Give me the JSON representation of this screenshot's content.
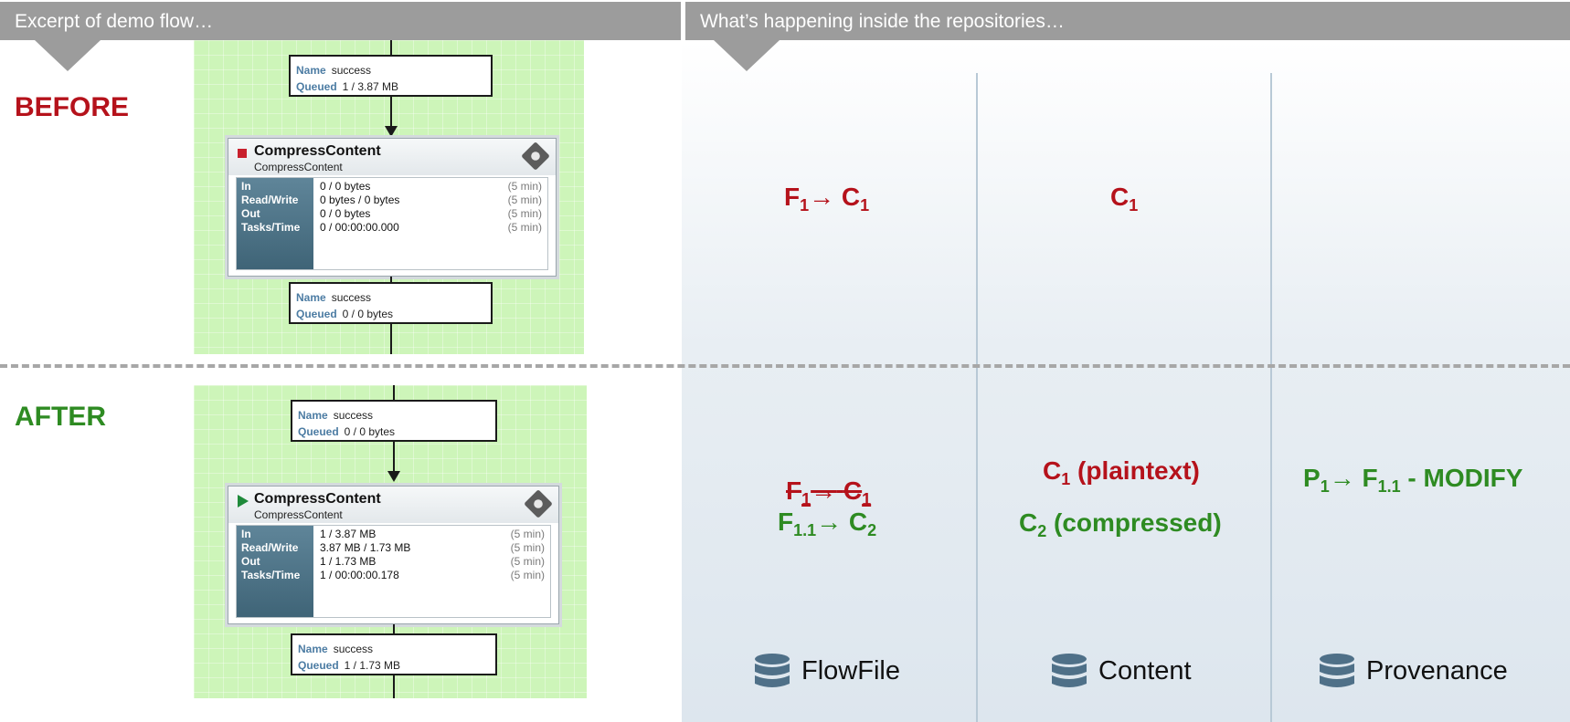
{
  "header": {
    "left_title": "Excerpt of demo flow…",
    "right_title": "What’s happening inside the repositories…"
  },
  "states": {
    "before": "BEFORE",
    "after": "AFTER"
  },
  "colors": {
    "before": "#b5121b",
    "after": "#2e8b22",
    "header_bg": "#9c9c9c"
  },
  "before_flow": {
    "conn_top": {
      "name_key": "Name",
      "name_val": "success",
      "queued_key": "Queued",
      "queued_val": "1 / 3.87 MB"
    },
    "processor": {
      "name": "CompressContent",
      "type": "CompressContent",
      "status_icon": "stop-icon",
      "stats": [
        {
          "key": "In",
          "value": "0 / 0 bytes",
          "time": "(5 min)"
        },
        {
          "key": "Read/Write",
          "value": "0 bytes / 0 bytes",
          "time": "(5 min)"
        },
        {
          "key": "Out",
          "value": "0 / 0 bytes",
          "time": "(5 min)"
        },
        {
          "key": "Tasks/Time",
          "value": "0 / 00:00:00.000",
          "time": "(5 min)"
        }
      ]
    },
    "conn_bottom": {
      "name_key": "Name",
      "name_val": "success",
      "queued_key": "Queued",
      "queued_val": "0 / 0 bytes"
    }
  },
  "after_flow": {
    "conn_top": {
      "name_key": "Name",
      "name_val": "success",
      "queued_key": "Queued",
      "queued_val": "0 / 0 bytes"
    },
    "processor": {
      "name": "CompressContent",
      "type": "CompressContent",
      "status_icon": "play-icon",
      "stats": [
        {
          "key": "In",
          "value": "1 / 3.87 MB",
          "time": "(5 min)"
        },
        {
          "key": "Read/Write",
          "value": "3.87 MB / 1.73 MB",
          "time": "(5 min)"
        },
        {
          "key": "Out",
          "value": "1 / 1.73 MB",
          "time": "(5 min)"
        },
        {
          "key": "Tasks/Time",
          "value": "1 / 00:00:00.178",
          "time": "(5 min)"
        }
      ]
    },
    "conn_bottom": {
      "name_key": "Name",
      "name_val": "success",
      "queued_key": "Queued",
      "queued_val": "1 / 1.73 MB"
    }
  },
  "repos": {
    "before": {
      "flowfile": {
        "a": "F",
        "a_sub": "1",
        "arrow": "→",
        "b": "C",
        "b_sub": "1"
      },
      "content": {
        "a": "C",
        "a_sub": "1"
      }
    },
    "after": {
      "flowfile_old": {
        "a": "F",
        "a_sub": "1",
        "arrow": "→",
        "b": "C",
        "b_sub": "1"
      },
      "flowfile_new": {
        "a": "F",
        "a_sub": "1.1",
        "arrow": "→",
        "b": "C",
        "b_sub": "2"
      },
      "content_old": {
        "a": "C",
        "a_sub": "1",
        "suffix": " (plaintext)"
      },
      "content_new": {
        "a": "C",
        "a_sub": "2",
        "suffix": " (compressed)"
      },
      "provenance": {
        "a": "P",
        "a_sub": "1",
        "arrow": "→",
        "b": "F",
        "b_sub": "1.1",
        "suffix": " - MODIFY"
      }
    },
    "labels": {
      "flowfile": "FlowFile",
      "content": "Content",
      "provenance": "Provenance"
    }
  }
}
